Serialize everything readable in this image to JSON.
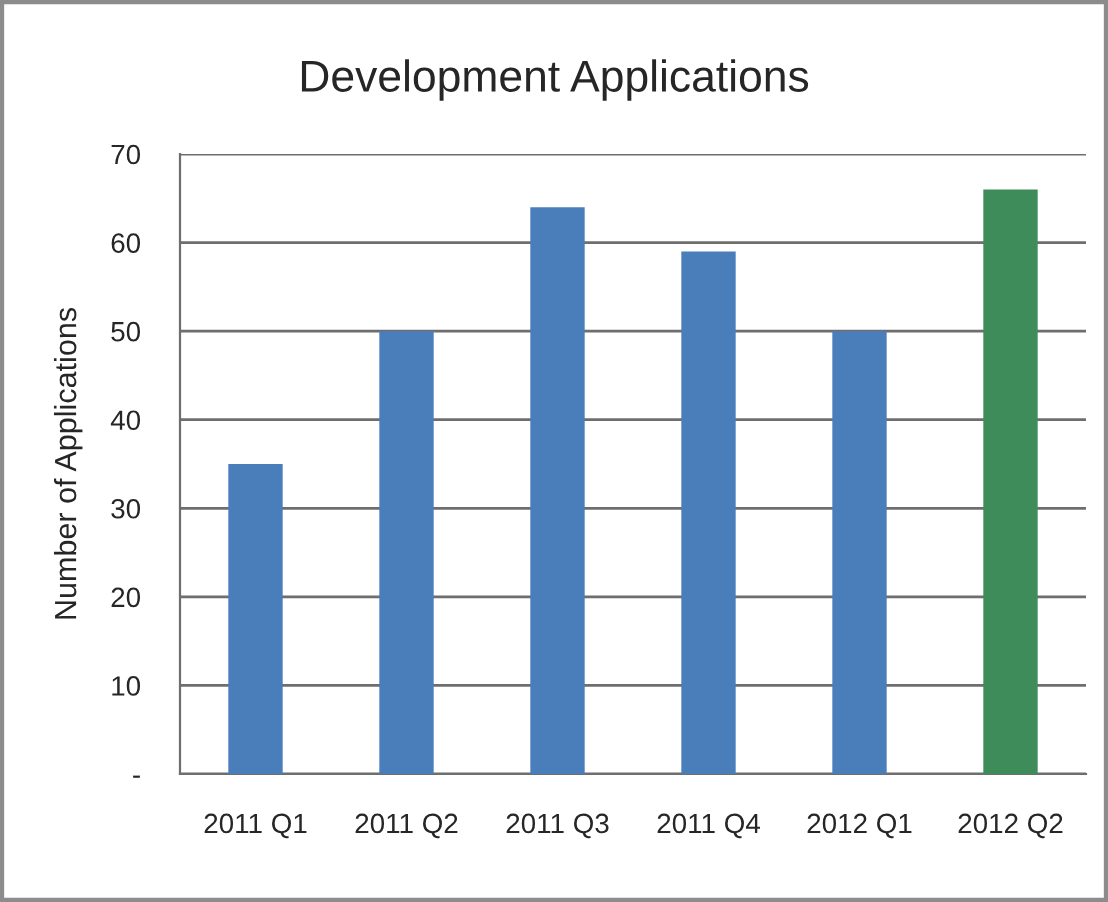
{
  "chart_data": {
    "type": "bar",
    "title": "Development Applications",
    "ylabel": "Number of Applications",
    "categories": [
      "2011 Q1",
      "2011 Q2",
      "2011 Q3",
      "2011 Q4",
      "2012 Q1",
      "2012 Q2"
    ],
    "values": [
      35,
      50,
      64,
      59,
      50,
      66
    ],
    "colors": [
      "#4a7ebb",
      "#4a7ebb",
      "#4a7ebb",
      "#4a7ebb",
      "#4a7ebb",
      "#3d8c5a"
    ],
    "ylim": [
      0,
      70
    ],
    "yticks": [
      {
        "value": 0,
        "label": "-"
      },
      10,
      20,
      30,
      40,
      50,
      60,
      70
    ],
    "grid": "y",
    "legend": false
  }
}
